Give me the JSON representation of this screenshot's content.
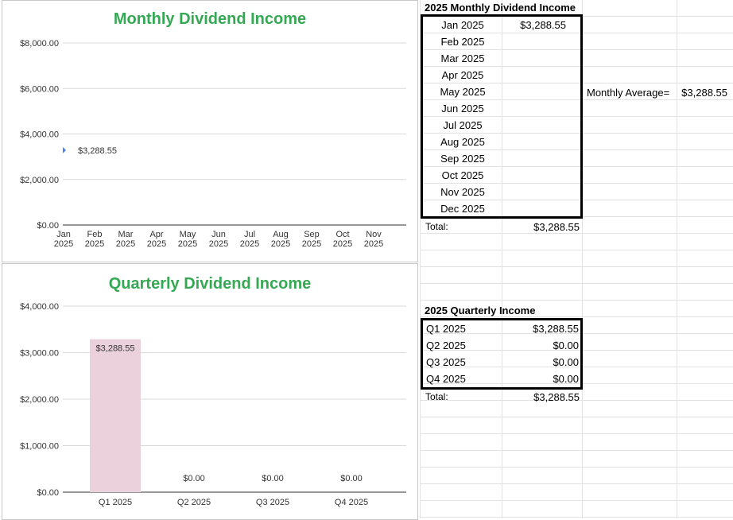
{
  "monthly_table": {
    "header": "2025 Monthly Dividend Income",
    "rows": [
      {
        "month": "Jan 2025",
        "amount": "$3,288.55"
      },
      {
        "month": "Feb 2025",
        "amount": ""
      },
      {
        "month": "Mar 2025",
        "amount": ""
      },
      {
        "month": "Apr 2025",
        "amount": ""
      },
      {
        "month": "May 2025",
        "amount": ""
      },
      {
        "month": "Jun 2025",
        "amount": ""
      },
      {
        "month": "Jul 2025",
        "amount": ""
      },
      {
        "month": "Aug 2025",
        "amount": ""
      },
      {
        "month": "Sep 2025",
        "amount": ""
      },
      {
        "month": "Oct 2025",
        "amount": ""
      },
      {
        "month": "Nov 2025",
        "amount": ""
      },
      {
        "month": "Dec 2025",
        "amount": ""
      }
    ],
    "total_label": "Total:",
    "total_value": "$3,288.55",
    "average_label": "Monthly Average=",
    "average_value": "$3,288.55"
  },
  "quarterly_table": {
    "header": "2025 Quarterly Income",
    "rows": [
      {
        "quarter": "Q1 2025",
        "amount": "$3,288.55"
      },
      {
        "quarter": "Q2 2025",
        "amount": "$0.00"
      },
      {
        "quarter": "Q3 2025",
        "amount": "$0.00"
      },
      {
        "quarter": "Q4 2025",
        "amount": "$0.00"
      }
    ],
    "total_label": "Total:",
    "total_value": "$3,288.55"
  },
  "colors": {
    "title_green": "#34a853",
    "line_blue": "#4a86e8",
    "bar_pink": "#ead1dc",
    "zero_label_pink": "#f0c6d4",
    "grid_line": "#d9d9d9"
  },
  "chart_data": [
    {
      "type": "line",
      "title": "Monthly Dividend Income",
      "categories": [
        "Jan 2025",
        "Feb 2025",
        "Mar 2025",
        "Apr 2025",
        "May 2025",
        "Jun 2025",
        "Jul 2025",
        "Aug 2025",
        "Sep 2025",
        "Oct 2025",
        "Nov 2025"
      ],
      "series": [
        {
          "values": [
            3288.55,
            null,
            null,
            null,
            null,
            null,
            null,
            null,
            null,
            null,
            null
          ]
        }
      ],
      "data_labels": [
        "$3,288.55"
      ],
      "y_ticks": [
        "$0.00",
        "$2,000.00",
        "$4,000.00",
        "$6,000.00",
        "$8,000.00"
      ],
      "ylim": [
        0,
        8000
      ],
      "grid": true
    },
    {
      "type": "bar",
      "title": "Quarterly Dividend Income",
      "categories": [
        "Q1 2025",
        "Q2 2025",
        "Q3 2025",
        "Q4 2025"
      ],
      "values": [
        3288.55,
        0,
        0,
        0
      ],
      "data_labels": [
        "$3,288.55",
        "$0.00",
        "$0.00",
        "$0.00"
      ],
      "y_ticks": [
        "$0.00",
        "$1,000.00",
        "$2,000.00",
        "$3,000.00",
        "$4,000.00"
      ],
      "ylim": [
        0,
        4000
      ],
      "grid": true
    }
  ]
}
